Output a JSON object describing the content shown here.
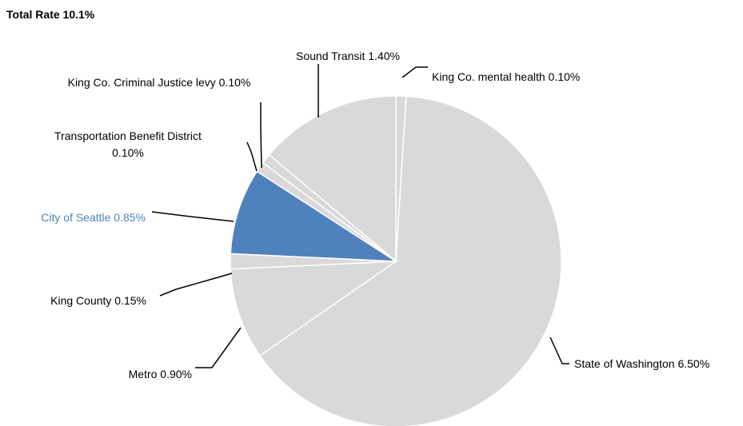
{
  "chart_data": {
    "type": "pie",
    "title": "Total Rate 10.1%",
    "slices": [
      {
        "label": "King Co. mental health 0.10%",
        "value": 0.1,
        "color": "#d9d9d9"
      },
      {
        "label": "State of Washington 6.50%",
        "value": 6.5,
        "color": "#d9d9d9"
      },
      {
        "label": "Metro 0.90%",
        "value": 0.9,
        "color": "#d9d9d9"
      },
      {
        "label": "King County 0.15%",
        "value": 0.15,
        "color": "#d9d9d9"
      },
      {
        "label": "City of Seattle 0.85%",
        "value": 0.85,
        "color": "#4f81bd",
        "highlight": true
      },
      {
        "label": "Transportation Benefit District 0.10%",
        "value": 0.1,
        "color": "#d9d9d9"
      },
      {
        "label": "King Co. Criminal Justice levy 0.10%",
        "value": 0.1,
        "color": "#d9d9d9"
      },
      {
        "label": "Sound Transit 1.40%",
        "value": 1.4,
        "color": "#d9d9d9"
      }
    ],
    "highlight_color": "#4f81bd",
    "label_color": "#000000",
    "legend": "none"
  }
}
